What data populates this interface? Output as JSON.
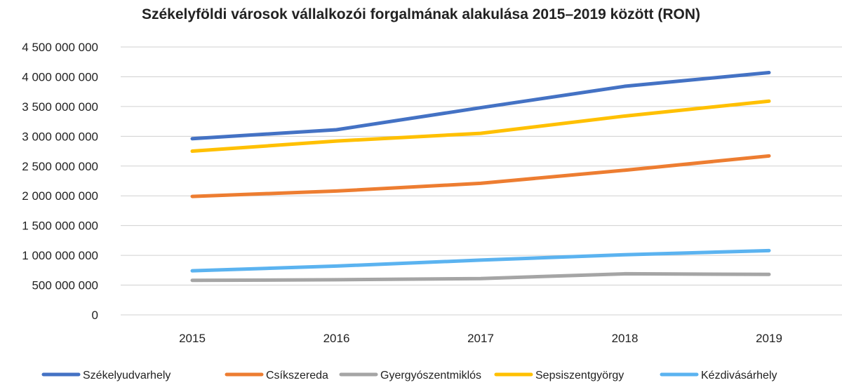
{
  "chart_data": {
    "type": "line",
    "title": "Székelyföldi városok vállalkozói forgalmának alakulása 2015–2019 között (RON)",
    "xlabel": "",
    "ylabel": "",
    "categories": [
      "2015",
      "2016",
      "2017",
      "2018",
      "2019"
    ],
    "ylim": [
      0,
      4500000000
    ],
    "yticks": [
      0,
      500000000,
      1000000000,
      1500000000,
      2000000000,
      2500000000,
      3000000000,
      3500000000,
      4000000000,
      4500000000
    ],
    "ytick_labels": [
      "0",
      "500 000 000",
      "1 000 000 000",
      "1 500 000 000",
      "2 000 000 000",
      "2 500 000 000",
      "3 000 000 000",
      "3 500 000 000",
      "4 000 000 000",
      "4 500 000 000"
    ],
    "grid": true,
    "legend_position": "bottom",
    "series": [
      {
        "name": "Székelyudvarhely",
        "color": "#4472C4",
        "values": [
          2960000000,
          3110000000,
          3480000000,
          3840000000,
          4070000000
        ]
      },
      {
        "name": "Csíkszereda",
        "color": "#ED7D31",
        "values": [
          1990000000,
          2080000000,
          2210000000,
          2430000000,
          2670000000
        ]
      },
      {
        "name": "Gyergyószentmiklós",
        "color": "#A5A5A5",
        "values": [
          580000000,
          590000000,
          610000000,
          690000000,
          680000000
        ]
      },
      {
        "name": "Sepsiszentgyörgy",
        "color": "#FFC000",
        "values": [
          2750000000,
          2920000000,
          3050000000,
          3340000000,
          3590000000
        ]
      },
      {
        "name": "Kézdivásárhely",
        "color": "#5BB3F0",
        "values": [
          740000000,
          820000000,
          920000000,
          1010000000,
          1080000000
        ]
      }
    ]
  }
}
